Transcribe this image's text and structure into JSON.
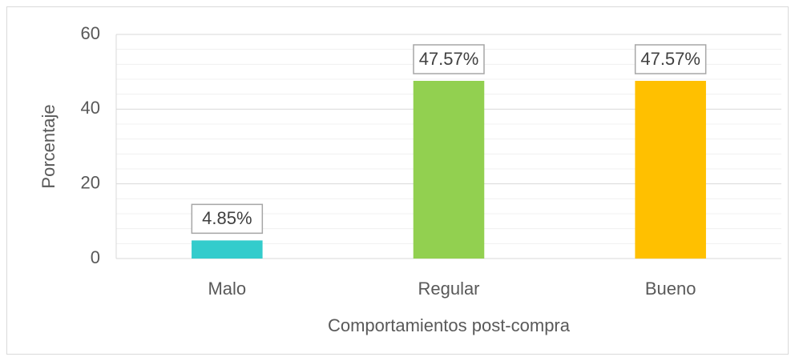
{
  "chart_data": {
    "type": "bar",
    "categories": [
      "Malo",
      "Regular",
      "Bueno"
    ],
    "values": [
      4.85,
      47.57,
      47.57
    ],
    "value_labels": [
      "4.85%",
      "47.57%",
      "47.57%"
    ],
    "colors": [
      "#33cccc",
      "#92d050",
      "#ffc000"
    ],
    "xlabel": "Comportamientos post-compra",
    "ylabel": "Porcentaje",
    "ylim": [
      0,
      60
    ],
    "yticks": [
      0,
      20,
      40,
      60
    ],
    "minor_yticks": [
      4,
      8,
      12,
      16,
      24,
      28,
      32,
      36,
      44,
      48,
      52,
      56
    ],
    "grid": true
  }
}
